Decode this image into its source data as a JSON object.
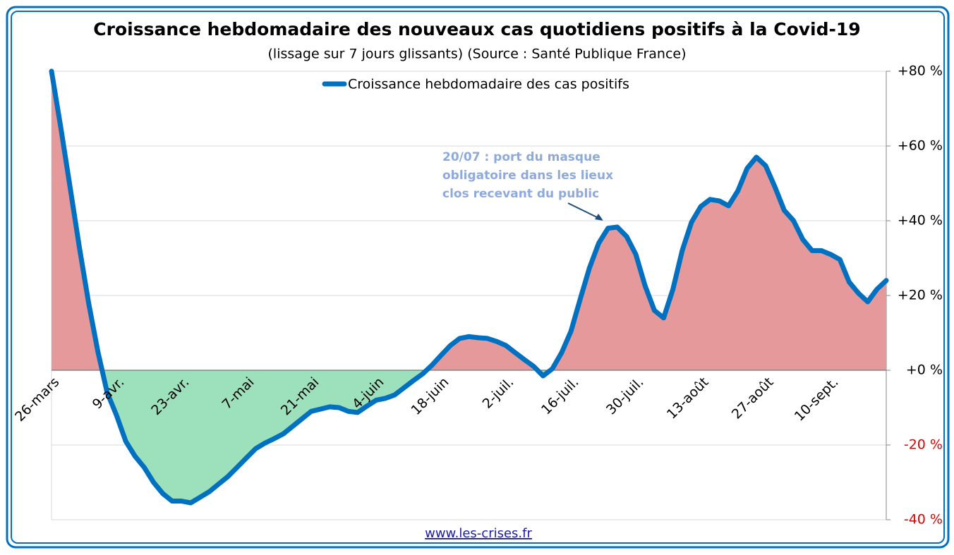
{
  "chart_data": {
    "type": "line",
    "title": "Croissance hebdomadaire des nouveaux cas quotidiens positifs à la Covid-19",
    "subtitle": "(lissage sur 7 jours glissants) (Source : Santé Publique France)",
    "footer": "www.les-crises.fr",
    "annotation": [
      "20/07 : port du masque",
      "obligatoire dans les lieux",
      "clos recevant du public"
    ],
    "categories": [
      "26-mars",
      null,
      null,
      null,
      null,
      null,
      null,
      "9-avr.",
      null,
      null,
      null,
      null,
      null,
      null,
      "23-avr.",
      null,
      null,
      null,
      null,
      null,
      null,
      "7-mai",
      null,
      null,
      null,
      null,
      null,
      null,
      "21-mai",
      null,
      null,
      null,
      null,
      null,
      null,
      "4-juin",
      null,
      null,
      null,
      null,
      null,
      null,
      "18-juin",
      null,
      null,
      null,
      null,
      null,
      null,
      "2-juil.",
      null,
      null,
      null,
      null,
      null,
      null,
      "16-juil.",
      null,
      null,
      null,
      null,
      null,
      null,
      "30-juil.",
      null,
      null,
      null,
      null,
      null,
      null,
      "13-août",
      null,
      null,
      null,
      null,
      null,
      null,
      "27-août",
      null,
      null,
      null,
      null,
      null,
      null,
      "10-sept.",
      null,
      null,
      null,
      null,
      null,
      null
    ],
    "series": [
      {
        "name": "Croissance hebdomadaire des cas positifs",
        "color": "#0070c0",
        "values": [
          80,
          65,
          49,
          33,
          18,
          5,
          -6,
          -12,
          -19,
          -23,
          -26,
          -30,
          -33,
          -35,
          -35,
          -35.5,
          -34,
          -32.5,
          -30.5,
          -28.5,
          -26,
          -23.5,
          -21,
          -19.5,
          -18.3,
          -17,
          -15,
          -13,
          -11,
          -10.4,
          -9.8,
          -10,
          -11,
          -11.3,
          -9.6,
          -8,
          -7.5,
          -6.6,
          -4.7,
          -2.8,
          -1,
          1.3,
          4,
          6.6,
          8.5,
          9,
          8.7,
          8.5,
          7.7,
          6.6,
          4.7,
          2.8,
          1,
          -1.5,
          0.4,
          4.7,
          10.4,
          19,
          27.4,
          34,
          38,
          38.3,
          35.8,
          31,
          22.6,
          16,
          14,
          21.7,
          32,
          39.6,
          43.8,
          45.7,
          45.3,
          44,
          48,
          54,
          57,
          54.7,
          49,
          42.8,
          40,
          35,
          32,
          32,
          31,
          29.6,
          23.6,
          20.6,
          18.3,
          21.7,
          24
        ]
      }
    ],
    "positive_fill": "#e6999b",
    "negative_fill": "#9ce0bc",
    "negative_tick_color": "#e00000",
    "ylim": [
      -40,
      80
    ],
    "yticks": [
      {
        "value": 80,
        "label": "+80 %"
      },
      {
        "value": 60,
        "label": "+60 %"
      },
      {
        "value": 40,
        "label": "+40 %"
      },
      {
        "value": 20,
        "label": "+20 %"
      },
      {
        "value": 0,
        "label": "+0 %"
      },
      {
        "value": -20,
        "label": "-20 %"
      },
      {
        "value": -40,
        "label": "-40 %"
      }
    ],
    "grid": true
  }
}
